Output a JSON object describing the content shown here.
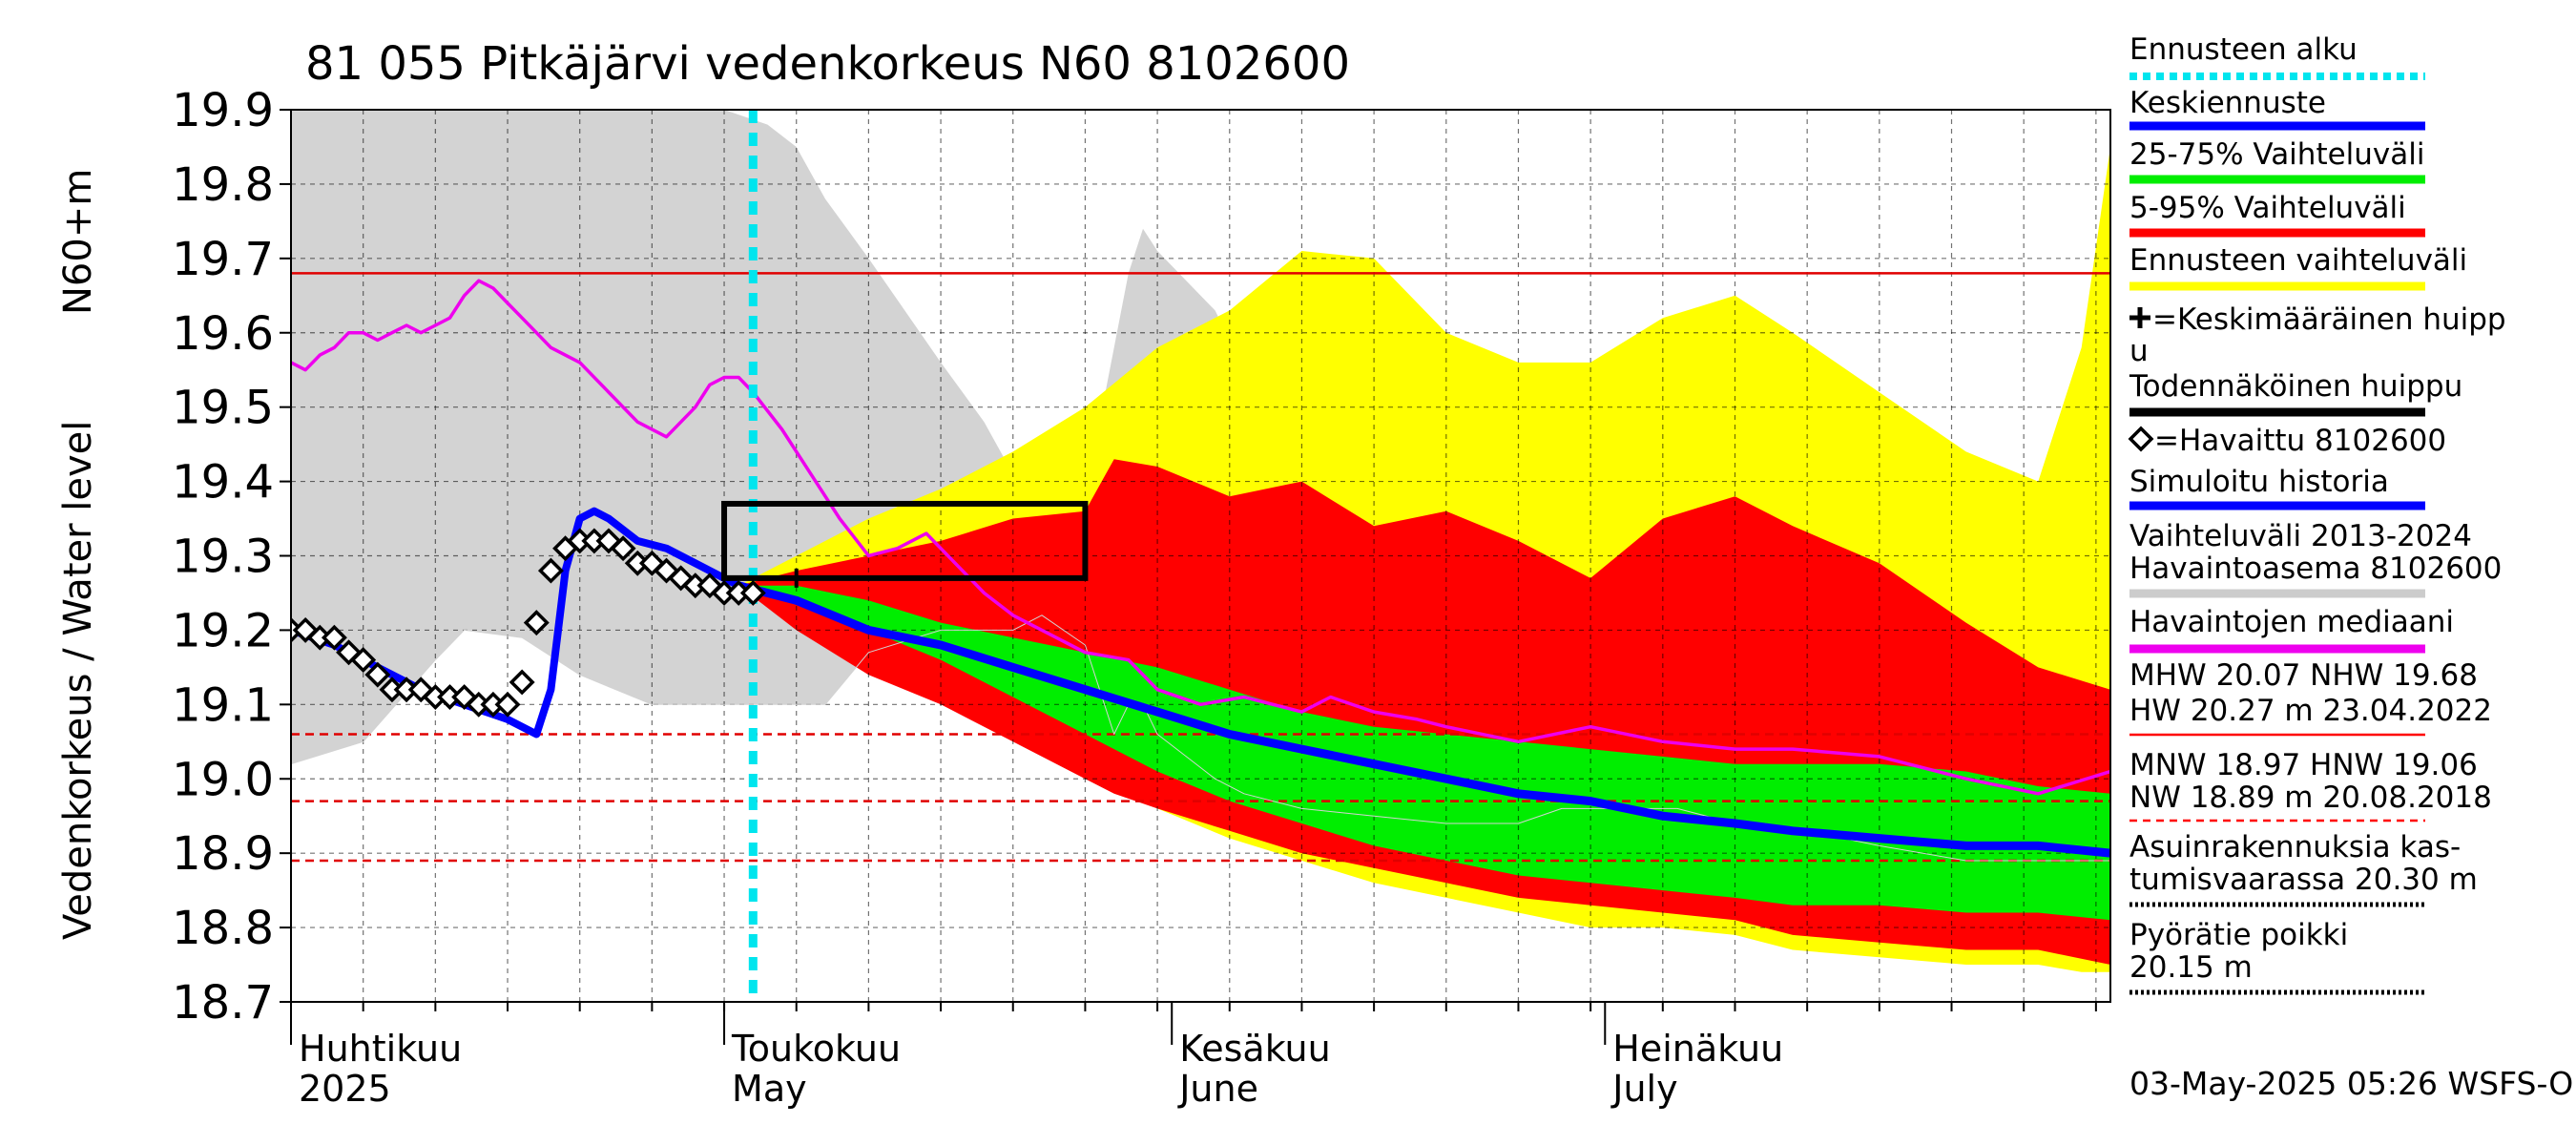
{
  "chart_data": {
    "type": "area",
    "title": "81 055 Pitkäjärvi vedenkorkeus N60 8102600",
    "ylabel_top": "N60+m",
    "ylabel": "Vedenkorkeus / Water level",
    "ylim": [
      18.7,
      19.9
    ],
    "yticks": [
      "19.9",
      "19.8",
      "19.7",
      "19.6",
      "19.5",
      "19.4",
      "19.3",
      "19.2",
      "19.1",
      "19.0",
      "18.9",
      "18.8",
      "18.7"
    ],
    "x_range_days": [
      0,
      126
    ],
    "month_labels": [
      {
        "fi": "Huhtikuu",
        "en": "2025",
        "day": 0
      },
      {
        "fi": "Toukokuu",
        "en": "May",
        "day": 30
      },
      {
        "fi": "Kesäkuu",
        "en": "June",
        "day": 61
      },
      {
        "fi": "Heinäkuu",
        "en": "July",
        "day": 91
      }
    ],
    "forecast_start_day": 32,
    "timestamp": "03-May-2025 05:26 WSFS-O",
    "reference_lines": [
      {
        "name": "MHW",
        "value": 20.07,
        "style": "solid-red"
      },
      {
        "name": "NHW",
        "value": 19.68,
        "style": "solid-red"
      },
      {
        "name": "HNW",
        "value": 19.06,
        "style": "dashed-red"
      },
      {
        "name": "MNW",
        "value": 18.97,
        "style": "dashed-red"
      },
      {
        "name": "NW",
        "value": 18.89,
        "style": "dashed-red"
      }
    ],
    "historical_range_2013_2024": {
      "x": [
        0,
        5,
        10,
        12,
        16,
        20,
        25,
        30,
        33,
        35,
        37,
        40,
        45,
        48,
        50,
        52,
        55,
        57,
        58,
        59,
        60,
        62,
        64,
        66,
        70,
        75,
        80,
        85,
        88,
        90,
        93,
        96,
        100,
        102,
        105,
        110,
        116,
        121,
        126
      ],
      "upper": [
        19.9,
        19.9,
        19.9,
        19.9,
        19.9,
        19.9,
        19.9,
        19.9,
        19.88,
        19.85,
        19.78,
        19.7,
        19.56,
        19.48,
        19.41,
        19.46,
        19.38,
        19.58,
        19.68,
        19.74,
        19.71,
        19.67,
        19.63,
        19.55,
        19.44,
        19.33,
        19.26,
        19.2,
        19.2,
        19.2,
        19.32,
        19.34,
        19.3,
        19.4,
        19.48,
        19.43,
        19.33,
        19.29,
        19.27
      ],
      "lower": [
        19.02,
        19.05,
        19.16,
        19.2,
        19.19,
        19.14,
        19.1,
        19.1,
        19.1,
        19.1,
        19.1,
        19.17,
        19.2,
        19.2,
        19.2,
        19.22,
        19.18,
        19.06,
        19.1,
        19.1,
        19.06,
        19.03,
        19.0,
        18.98,
        18.96,
        18.95,
        18.94,
        18.94,
        18.96,
        18.96,
        18.96,
        18.96,
        18.94,
        18.94,
        18.93,
        18.91,
        18.89,
        18.89,
        18.89
      ]
    },
    "forecast_range": {
      "x": [
        31,
        40,
        45,
        50,
        55,
        60,
        65,
        70,
        75,
        80,
        85,
        90,
        95,
        100,
        104,
        110,
        116,
        121,
        124,
        126
      ],
      "upper": [
        19.26,
        19.35,
        19.39,
        19.44,
        19.5,
        19.58,
        19.63,
        19.71,
        19.7,
        19.6,
        19.56,
        19.56,
        19.62,
        19.65,
        19.6,
        19.52,
        19.44,
        19.4,
        19.58,
        19.85
      ],
      "lower": [
        19.26,
        19.18,
        19.12,
        19.07,
        19.02,
        18.96,
        18.92,
        18.89,
        18.86,
        18.84,
        18.82,
        18.8,
        18.8,
        18.79,
        18.77,
        18.76,
        18.75,
        18.75,
        18.74,
        18.74
      ]
    },
    "range_5_95": {
      "x": [
        31,
        35,
        40,
        45,
        50,
        55,
        57,
        60,
        65,
        70,
        75,
        80,
        85,
        90,
        95,
        100,
        104,
        110,
        116,
        121,
        126
      ],
      "upper": [
        19.26,
        19.28,
        19.3,
        19.32,
        19.35,
        19.36,
        19.43,
        19.42,
        19.38,
        19.4,
        19.34,
        19.36,
        19.32,
        19.27,
        19.35,
        19.38,
        19.34,
        19.29,
        19.21,
        19.15,
        19.12
      ],
      "lower": [
        19.26,
        19.2,
        19.14,
        19.1,
        19.05,
        19.0,
        18.98,
        18.96,
        18.93,
        18.9,
        18.88,
        18.86,
        18.84,
        18.83,
        18.82,
        18.81,
        18.79,
        18.78,
        18.77,
        18.77,
        18.75
      ]
    },
    "range_25_75": {
      "x": [
        31,
        35,
        40,
        45,
        50,
        55,
        60,
        65,
        70,
        75,
        80,
        85,
        90,
        95,
        100,
        104,
        110,
        116,
        121,
        126
      ],
      "upper": [
        19.26,
        19.26,
        19.24,
        19.21,
        19.19,
        19.17,
        19.15,
        19.12,
        19.09,
        19.07,
        19.06,
        19.05,
        19.04,
        19.03,
        19.02,
        19.02,
        19.02,
        19.01,
        18.99,
        18.98
      ],
      "lower": [
        19.26,
        19.24,
        19.2,
        19.16,
        19.11,
        19.06,
        19.01,
        18.97,
        18.94,
        18.91,
        18.89,
        18.87,
        18.86,
        18.85,
        18.84,
        18.83,
        18.83,
        18.82,
        18.82,
        18.81
      ]
    },
    "median_forecast": {
      "x": [
        31,
        35,
        40,
        45,
        50,
        55,
        60,
        65,
        70,
        75,
        80,
        85,
        90,
        95,
        100,
        104,
        110,
        116,
        121,
        126
      ],
      "y": [
        19.26,
        19.24,
        19.2,
        19.18,
        19.15,
        19.12,
        19.09,
        19.06,
        19.04,
        19.02,
        19.0,
        18.98,
        18.97,
        18.95,
        18.94,
        18.93,
        18.92,
        18.91,
        18.91,
        18.9
      ]
    },
    "simulated_history": {
      "x": [
        0,
        3,
        6,
        9,
        12,
        15,
        17,
        18,
        19,
        20,
        21,
        22,
        24,
        26,
        28,
        30,
        32
      ],
      "y": [
        19.2,
        19.18,
        19.15,
        19.12,
        19.1,
        19.08,
        19.06,
        19.12,
        19.28,
        19.35,
        19.36,
        19.35,
        19.32,
        19.31,
        19.29,
        19.27,
        19.25
      ]
    },
    "observed": {
      "x": [
        0,
        1,
        2,
        3,
        4,
        5,
        6,
        7,
        8,
        9,
        10,
        11,
        12,
        13,
        14,
        15,
        16,
        17,
        18,
        19,
        20,
        21,
        22,
        23,
        24,
        25,
        26,
        27,
        28,
        29,
        30,
        31,
        32
      ],
      "y": [
        19.2,
        19.2,
        19.19,
        19.19,
        19.17,
        19.16,
        19.14,
        19.12,
        19.12,
        19.12,
        19.11,
        19.11,
        19.11,
        19.1,
        19.1,
        19.1,
        19.13,
        19.21,
        19.28,
        19.31,
        19.32,
        19.32,
        19.32,
        19.31,
        19.29,
        19.29,
        19.28,
        19.27,
        19.26,
        19.26,
        19.25,
        19.25,
        19.25
      ]
    },
    "observed_median": {
      "x": [
        0,
        1,
        2,
        3,
        4,
        5,
        6,
        7,
        8,
        9,
        10,
        11,
        12,
        13,
        14,
        15,
        16,
        17,
        18,
        20,
        22,
        24,
        26,
        28,
        29,
        30,
        31,
        32,
        34,
        36,
        38,
        40,
        42,
        44,
        46,
        48,
        50,
        52,
        55,
        58,
        60,
        63,
        66,
        70,
        72,
        75,
        78,
        80,
        85,
        90,
        95,
        100,
        104,
        110,
        116,
        121,
        126
      ],
      "y": [
        19.56,
        19.55,
        19.57,
        19.58,
        19.6,
        19.6,
        19.59,
        19.6,
        19.61,
        19.6,
        19.61,
        19.62,
        19.65,
        19.67,
        19.66,
        19.64,
        19.62,
        19.6,
        19.58,
        19.56,
        19.52,
        19.48,
        19.46,
        19.5,
        19.53,
        19.54,
        19.54,
        19.52,
        19.47,
        19.41,
        19.35,
        19.3,
        19.31,
        19.33,
        19.29,
        19.25,
        19.22,
        19.2,
        19.17,
        19.16,
        19.12,
        19.1,
        19.11,
        19.09,
        19.11,
        19.09,
        19.08,
        19.07,
        19.05,
        19.07,
        19.05,
        19.04,
        19.04,
        19.03,
        19.0,
        18.98,
        19.01
      ]
    },
    "expected_peak_box": {
      "x": [
        30,
        55
      ],
      "y": [
        19.27,
        19.37
      ]
    },
    "mean_peak_marker": {
      "x": 35,
      "y": 19.27
    },
    "legend": [
      {
        "label": "Ennusteen alku",
        "color": "#00e5ee",
        "style": "dotted"
      },
      {
        "label": "Keskiennuste",
        "color": "#0000ff",
        "style": "solid"
      },
      {
        "label": "25-75% Vaihteluväli",
        "color": "#00ee00",
        "style": "solid"
      },
      {
        "label": "5-95% Vaihteluväli",
        "color": "#ff0000",
        "style": "solid"
      },
      {
        "label": "Ennusteen vaihteluväli",
        "color": "#ffff00",
        "style": "solid"
      },
      {
        "label": "=Keskimääräinen huipp",
        "label2": "u",
        "color": "#000000",
        "style": "marker-plus"
      },
      {
        "label": "Todennäköinen huippu",
        "color": "#000000",
        "style": "solid"
      },
      {
        "label": "=Havaittu 8102600",
        "color": "#000000",
        "style": "marker-diamond"
      },
      {
        "label": "Simuloitu historia",
        "color": "#0000ff",
        "style": "solid"
      },
      {
        "label": "Vaihteluväli 2013-2024",
        "label2": " Havaintoasema 8102600",
        "color": "#cccccc",
        "style": "solid"
      },
      {
        "label": "Havaintojen mediaani",
        "color": "#ee00ee",
        "style": "solid"
      },
      {
        "label": "MHW  20.07 NHW  19.68",
        "label2": "HW  20.27 m 23.04.2022",
        "color": "#ff0000",
        "style": "solid-thin"
      },
      {
        "label": "MNW  18.97 HNW  19.06",
        "label2": "NW  18.89 m 20.08.2018",
        "color": "#ff0000",
        "style": "dashed"
      },
      {
        "label": "Asuinrakennuksia kas-",
        "label2": "tumisvaarassa 20.30 m",
        "color": "#000000",
        "style": "dotted"
      },
      {
        "label": "Pyörätie poikki",
        "label2": "  20.15 m",
        "color": "#000000",
        "style": "dotted"
      }
    ]
  }
}
